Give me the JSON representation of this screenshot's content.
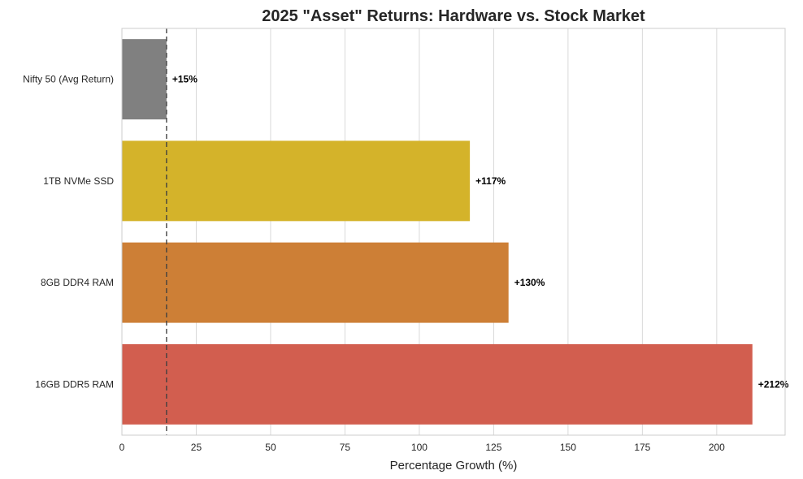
{
  "chart_data": {
    "type": "bar",
    "orientation": "horizontal",
    "title": "2025 \"Asset\" Returns: Hardware vs. Stock Market",
    "xlabel": "Percentage Growth (%)",
    "ylabel": "",
    "categories": [
      "Nifty 50 (Avg Return)",
      "1TB NVMe SSD",
      "8GB DDR4 RAM",
      "16GB DDR5 RAM"
    ],
    "values": [
      15,
      117,
      130,
      212
    ],
    "value_labels": [
      "+15%",
      "+117%",
      "+130%",
      "+212%"
    ],
    "colors": [
      "#808080",
      "#d4b32a",
      "#cd7f36",
      "#d25e4f"
    ],
    "xlim": [
      0,
      223
    ],
    "xticks": [
      0,
      25,
      50,
      75,
      100,
      125,
      150,
      175,
      200
    ],
    "reference_line": {
      "value": 15,
      "style": "dashed",
      "color": "#404040"
    },
    "grid": "vertical"
  }
}
